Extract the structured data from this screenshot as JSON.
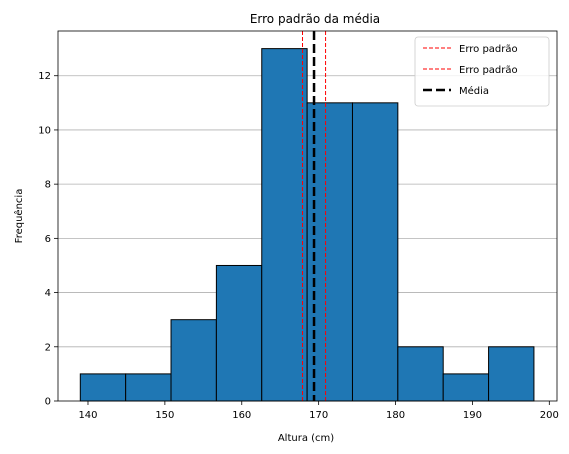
{
  "chart_data": {
    "type": "bar",
    "subtype": "histogram",
    "title": "Erro padrão da média",
    "xlabel": "Altura (cm)",
    "ylabel": "Frequência",
    "xlim": [
      136.1,
      201.0
    ],
    "ylim": [
      0,
      13.65
    ],
    "xticks": [
      140,
      150,
      160,
      170,
      180,
      190,
      200
    ],
    "yticks": [
      0,
      2,
      4,
      6,
      8,
      10,
      12
    ],
    "grid": "y-axis horizontal lines",
    "legend_position": "top-right",
    "bar_color": "#1f77b4",
    "edge_color": "#000000",
    "bins": [
      {
        "start": 139.0,
        "end": 144.9,
        "count": 1
      },
      {
        "start": 144.9,
        "end": 150.8,
        "count": 1
      },
      {
        "start": 150.8,
        "end": 156.7,
        "count": 3
      },
      {
        "start": 156.7,
        "end": 162.6,
        "count": 5
      },
      {
        "start": 162.6,
        "end": 168.5,
        "count": 13
      },
      {
        "start": 168.5,
        "end": 174.4,
        "count": 11
      },
      {
        "start": 174.4,
        "end": 180.3,
        "count": 11
      },
      {
        "start": 180.3,
        "end": 186.2,
        "count": 2
      },
      {
        "start": 186.2,
        "end": 192.1,
        "count": 1
      },
      {
        "start": 192.1,
        "end": 198.0,
        "count": 2
      }
    ],
    "reference_lines": [
      {
        "label": "Erro padrão",
        "x": 167.9,
        "color": "#ff0000",
        "style": "dashed"
      },
      {
        "label": "Erro padrão",
        "x": 170.9,
        "color": "#ff0000",
        "style": "dashed"
      },
      {
        "label": "Média",
        "x": 169.4,
        "color": "#000000",
        "style": "dashed-thick"
      }
    ]
  }
}
